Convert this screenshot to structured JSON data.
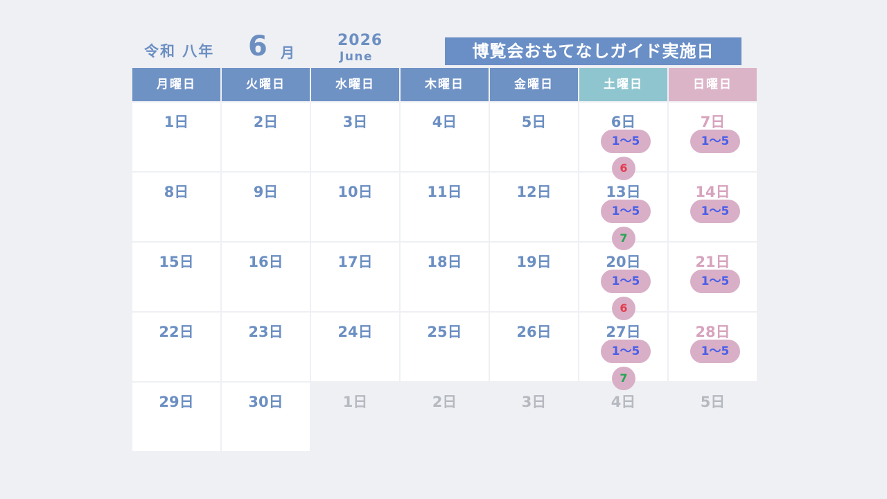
{
  "header": {
    "era": "令和 八年",
    "month_num": "6",
    "month_kanji": "月",
    "year": "2026",
    "month_en": "June",
    "banner": "博覧会おもてなしガイド実施日"
  },
  "weekdays": [
    {
      "label": "月曜日",
      "kind": "weekday"
    },
    {
      "label": "火曜日",
      "kind": "weekday"
    },
    {
      "label": "水曜日",
      "kind": "weekday"
    },
    {
      "label": "木曜日",
      "kind": "weekday"
    },
    {
      "label": "金曜日",
      "kind": "weekday"
    },
    {
      "label": "土曜日",
      "kind": "sat"
    },
    {
      "label": "日曜日",
      "kind": "sun"
    }
  ],
  "weeks": [
    [
      {
        "label": "1日"
      },
      {
        "label": "2日"
      },
      {
        "label": "3日"
      },
      {
        "label": "4日"
      },
      {
        "label": "5日"
      },
      {
        "label": "6日",
        "pill": "1～5",
        "circle": "6",
        "circle_color": "red"
      },
      {
        "label": "7日",
        "sun": true,
        "pill": "1～5"
      }
    ],
    [
      {
        "label": "8日"
      },
      {
        "label": "9日"
      },
      {
        "label": "10日"
      },
      {
        "label": "11日"
      },
      {
        "label": "12日"
      },
      {
        "label": "13日",
        "pill": "1～5",
        "circle": "7",
        "circle_color": "green"
      },
      {
        "label": "14日",
        "sun": true,
        "pill": "1～5"
      }
    ],
    [
      {
        "label": "15日"
      },
      {
        "label": "16日"
      },
      {
        "label": "17日"
      },
      {
        "label": "18日"
      },
      {
        "label": "19日"
      },
      {
        "label": "20日",
        "pill": "1～5",
        "circle": "6",
        "circle_color": "red"
      },
      {
        "label": "21日",
        "sun": true,
        "pill": "1～5"
      }
    ],
    [
      {
        "label": "22日"
      },
      {
        "label": "23日"
      },
      {
        "label": "24日"
      },
      {
        "label": "25日"
      },
      {
        "label": "26日"
      },
      {
        "label": "27日",
        "pill": "1～5",
        "circle": "7",
        "circle_color": "green"
      },
      {
        "label": "28日",
        "sun": true,
        "pill": "1～5"
      }
    ],
    [
      {
        "label": "29日"
      },
      {
        "label": "30日"
      },
      {
        "label": "1日",
        "next": true
      },
      {
        "label": "2日",
        "next": true
      },
      {
        "label": "3日",
        "next": true
      },
      {
        "label": "4日",
        "next": true
      },
      {
        "label": "5日",
        "next": true
      }
    ]
  ],
  "colors": {
    "background": "#eff0f4",
    "header_blue": "#6f92c5",
    "saturday_teal": "#8ec5cf",
    "sunday_pink": "#dcb4c8",
    "tag_fill": "#d8afc6",
    "tag_text_blue": "#4a5fe8",
    "tag_red": "#e23d4f",
    "tag_green": "#25a451",
    "next_month_gray": "#b6b9c0"
  }
}
